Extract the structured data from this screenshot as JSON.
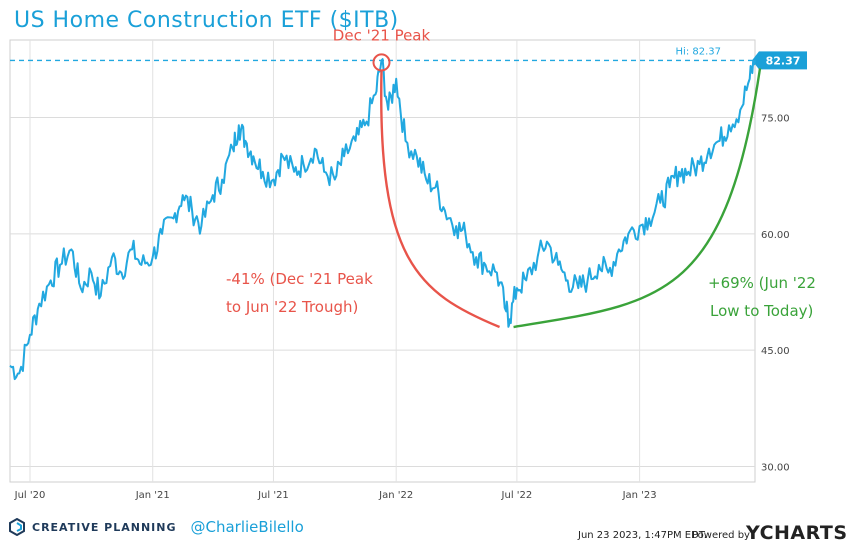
{
  "chart_data": {
    "type": "line",
    "title": "US Home Construction ETF ($ITB)",
    "ylim": [
      28,
      85
    ],
    "xlim": [
      "2020-06-01",
      "2023-06-23"
    ],
    "y_ticks": [
      30.0,
      45.0,
      60.0,
      75.0
    ],
    "y_tick_labels": [
      "30.00",
      "45.00",
      "60.00",
      "75.00"
    ],
    "x_ticks": [
      "2020-07-01",
      "2021-01-01",
      "2021-07-01",
      "2022-01-01",
      "2022-07-01",
      "2023-01-01"
    ],
    "x_tick_labels": [
      "Jul '20",
      "Jan '21",
      "Jul '21",
      "Jan '22",
      "Jul '22",
      "Jan '23"
    ],
    "grid": true,
    "series": [
      {
        "color": "#22a8e0",
        "x": [
          "2020-06-01",
          "2020-06-15",
          "2020-07-01",
          "2020-07-15",
          "2020-08-01",
          "2020-08-15",
          "2020-09-01",
          "2020-09-15",
          "2020-10-01",
          "2020-10-15",
          "2020-11-01",
          "2020-11-15",
          "2020-12-01",
          "2020-12-15",
          "2021-01-01",
          "2021-01-15",
          "2021-02-01",
          "2021-02-15",
          "2021-03-01",
          "2021-03-15",
          "2021-04-01",
          "2021-04-15",
          "2021-05-01",
          "2021-05-10",
          "2021-05-20",
          "2021-06-01",
          "2021-06-15",
          "2021-07-01",
          "2021-07-15",
          "2021-08-01",
          "2021-08-15",
          "2021-09-01",
          "2021-09-15",
          "2021-10-01",
          "2021-10-15",
          "2021-11-01",
          "2021-11-15",
          "2021-12-01",
          "2021-12-10",
          "2021-12-20",
          "2022-01-01",
          "2022-01-15",
          "2022-02-01",
          "2022-02-15",
          "2022-03-01",
          "2022-03-15",
          "2022-04-01",
          "2022-04-15",
          "2022-05-01",
          "2022-05-15",
          "2022-06-01",
          "2022-06-15",
          "2022-06-20",
          "2022-07-01",
          "2022-07-15",
          "2022-08-01",
          "2022-08-15",
          "2022-09-01",
          "2022-09-15",
          "2022-10-01",
          "2022-10-15",
          "2022-11-01",
          "2022-11-15",
          "2022-12-01",
          "2022-12-15",
          "2023-01-01",
          "2023-01-15",
          "2023-02-01",
          "2023-02-15",
          "2023-03-01",
          "2023-03-15",
          "2023-04-01",
          "2023-04-15",
          "2023-05-01",
          "2023-05-15",
          "2023-06-01",
          "2023-06-15",
          "2023-06-23"
        ],
        "y": [
          43,
          42,
          47,
          51,
          54,
          56,
          58,
          53,
          55,
          52,
          57,
          55,
          58,
          56,
          57,
          60,
          62,
          65,
          63,
          61,
          65,
          67,
          71,
          74,
          72,
          70,
          68,
          67,
          70,
          68,
          69,
          71,
          68,
          67,
          70,
          72,
          74,
          78,
          82.37,
          76,
          80,
          72,
          70,
          67,
          66,
          63,
          61,
          60,
          57,
          56,
          55,
          50,
          49,
          53,
          54,
          57,
          59,
          56,
          54,
          53,
          54,
          56,
          55,
          58,
          60,
          61,
          62,
          64,
          66,
          68,
          68,
          69,
          71,
          72,
          74,
          76,
          80,
          82.37
        ]
      }
    ],
    "high_label": "Hi: 82.37",
    "last_value_label": "82.37",
    "high_value": 82.37,
    "annotations": {
      "peak_label": "Dec '21 Peak",
      "peak_date": "2021-12-10",
      "trough_date": "2022-06-17",
      "trough_value": 48.5,
      "drop_line1": "-41% (Dec '21 Peak",
      "drop_line2": "to Jun '22 Trough)",
      "rise_line1": "+69% (Jun '22",
      "rise_line2": "Low to Today)",
      "drop_color": "#e8544a",
      "rise_color": "#3aa33a"
    }
  },
  "footer": {
    "brand": "CREATIVE PLANNING",
    "handle": "@CharlieBilello",
    "timestamp": "Jun 23 2023, 1:47PM EDT.",
    "powered_by": "Powered by",
    "ycharts": "YCHARTS"
  }
}
